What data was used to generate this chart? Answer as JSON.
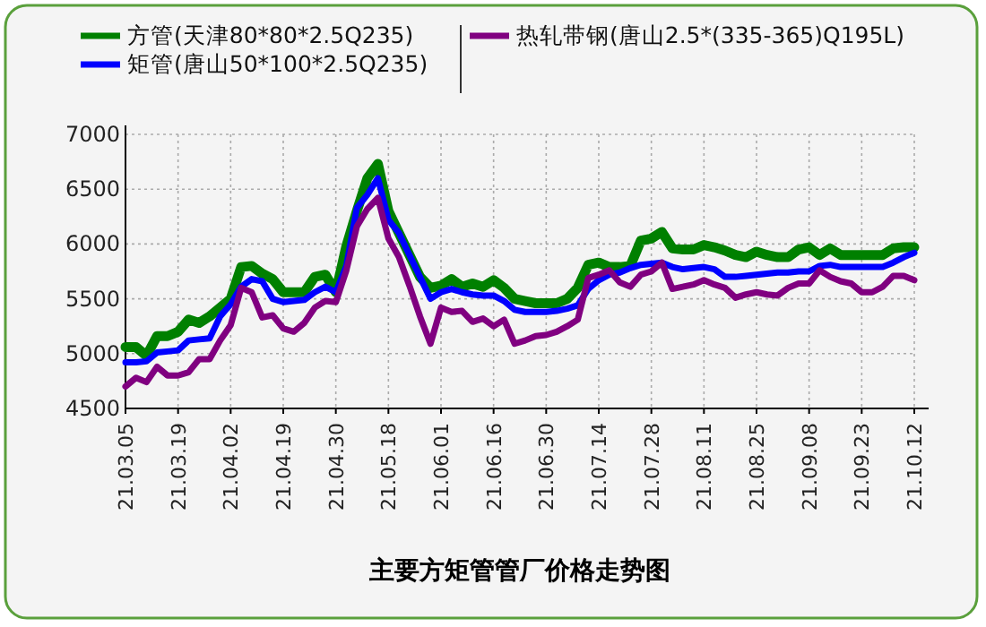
{
  "chart_data": {
    "type": "line",
    "title": "主要方矩管管厂价格走势图",
    "categories": [
      "21.03.05",
      null,
      null,
      null,
      null,
      "21.03.19",
      null,
      null,
      null,
      null,
      "21.04.02",
      null,
      null,
      null,
      null,
      "21.04.19",
      null,
      null,
      null,
      null,
      "21.04.30",
      null,
      null,
      null,
      null,
      "21.05.18",
      null,
      null,
      null,
      null,
      "21.06.01",
      null,
      null,
      null,
      null,
      "21.06.16",
      null,
      null,
      null,
      null,
      "21.06.30",
      null,
      null,
      null,
      null,
      "21.07.14",
      null,
      null,
      null,
      null,
      "21.07.28",
      null,
      null,
      null,
      null,
      "21.08.11",
      null,
      null,
      null,
      null,
      "21.08.25",
      null,
      null,
      null,
      null,
      "21.09.08",
      null,
      null,
      null,
      null,
      "21.09.23",
      null,
      null,
      null,
      null,
      "21.10.12"
    ],
    "series": [
      {
        "name": "方管(天津80*80*2.5Q235)",
        "color": "#008000",
        "values": [
          5060,
          5060,
          4980,
          5160,
          5160,
          5200,
          5310,
          5280,
          5340,
          5420,
          5500,
          5790,
          5800,
          5730,
          5680,
          5560,
          5560,
          5560,
          5700,
          5720,
          5560,
          5980,
          6300,
          6600,
          6730,
          6300,
          6100,
          5900,
          5700,
          5600,
          5620,
          5680,
          5610,
          5640,
          5610,
          5670,
          5600,
          5500,
          5480,
          5460,
          5460,
          5460,
          5500,
          5600,
          5810,
          5830,
          5790,
          5790,
          5800,
          6030,
          6050,
          6110,
          5960,
          5950,
          5950,
          5990,
          5970,
          5940,
          5900,
          5880,
          5930,
          5900,
          5880,
          5880,
          5950,
          5970,
          5900,
          5960,
          5900,
          5900,
          5900,
          5900,
          5900,
          5960,
          5970,
          5970
        ]
      },
      {
        "name": "矩管(唐山50*100*2.5Q235)",
        "color": "#0000ff",
        "values": [
          4920,
          4920,
          4930,
          5010,
          5020,
          5030,
          5120,
          5130,
          5140,
          5340,
          5450,
          5610,
          5680,
          5660,
          5500,
          5470,
          5480,
          5490,
          5560,
          5610,
          5560,
          5800,
          6330,
          6450,
          6600,
          6220,
          6100,
          5900,
          5700,
          5500,
          5560,
          5590,
          5560,
          5540,
          5530,
          5530,
          5480,
          5400,
          5380,
          5380,
          5380,
          5390,
          5410,
          5440,
          5590,
          5670,
          5720,
          5740,
          5780,
          5810,
          5820,
          5830,
          5790,
          5770,
          5780,
          5790,
          5770,
          5700,
          5700,
          5710,
          5720,
          5730,
          5740,
          5740,
          5750,
          5750,
          5800,
          5810,
          5790,
          5790,
          5790,
          5790,
          5790,
          5830,
          5880,
          5920
        ]
      },
      {
        "name": "热轧带钢(唐山2.5*(335-365)Q195L)",
        "color": "#800080",
        "values": [
          4700,
          4780,
          4740,
          4880,
          4800,
          4800,
          4830,
          4950,
          4950,
          5120,
          5260,
          5600,
          5560,
          5330,
          5350,
          5230,
          5200,
          5280,
          5420,
          5480,
          5470,
          5760,
          6160,
          6320,
          6420,
          6050,
          5880,
          5620,
          5340,
          5090,
          5420,
          5380,
          5390,
          5290,
          5320,
          5250,
          5310,
          5090,
          5120,
          5160,
          5170,
          5200,
          5250,
          5310,
          5690,
          5720,
          5760,
          5650,
          5610,
          5720,
          5750,
          5830,
          5590,
          5610,
          5630,
          5670,
          5630,
          5600,
          5510,
          5540,
          5560,
          5540,
          5530,
          5600,
          5640,
          5640,
          5760,
          5700,
          5660,
          5640,
          5560,
          5560,
          5610,
          5710,
          5710,
          5670
        ]
      }
    ],
    "ylim": [
      4500,
      7000
    ],
    "yticks": [
      4500,
      5000,
      5500,
      6000,
      6500,
      7000
    ],
    "grid": true,
    "legend": "top",
    "line_style": "solid",
    "marker": "none"
  }
}
